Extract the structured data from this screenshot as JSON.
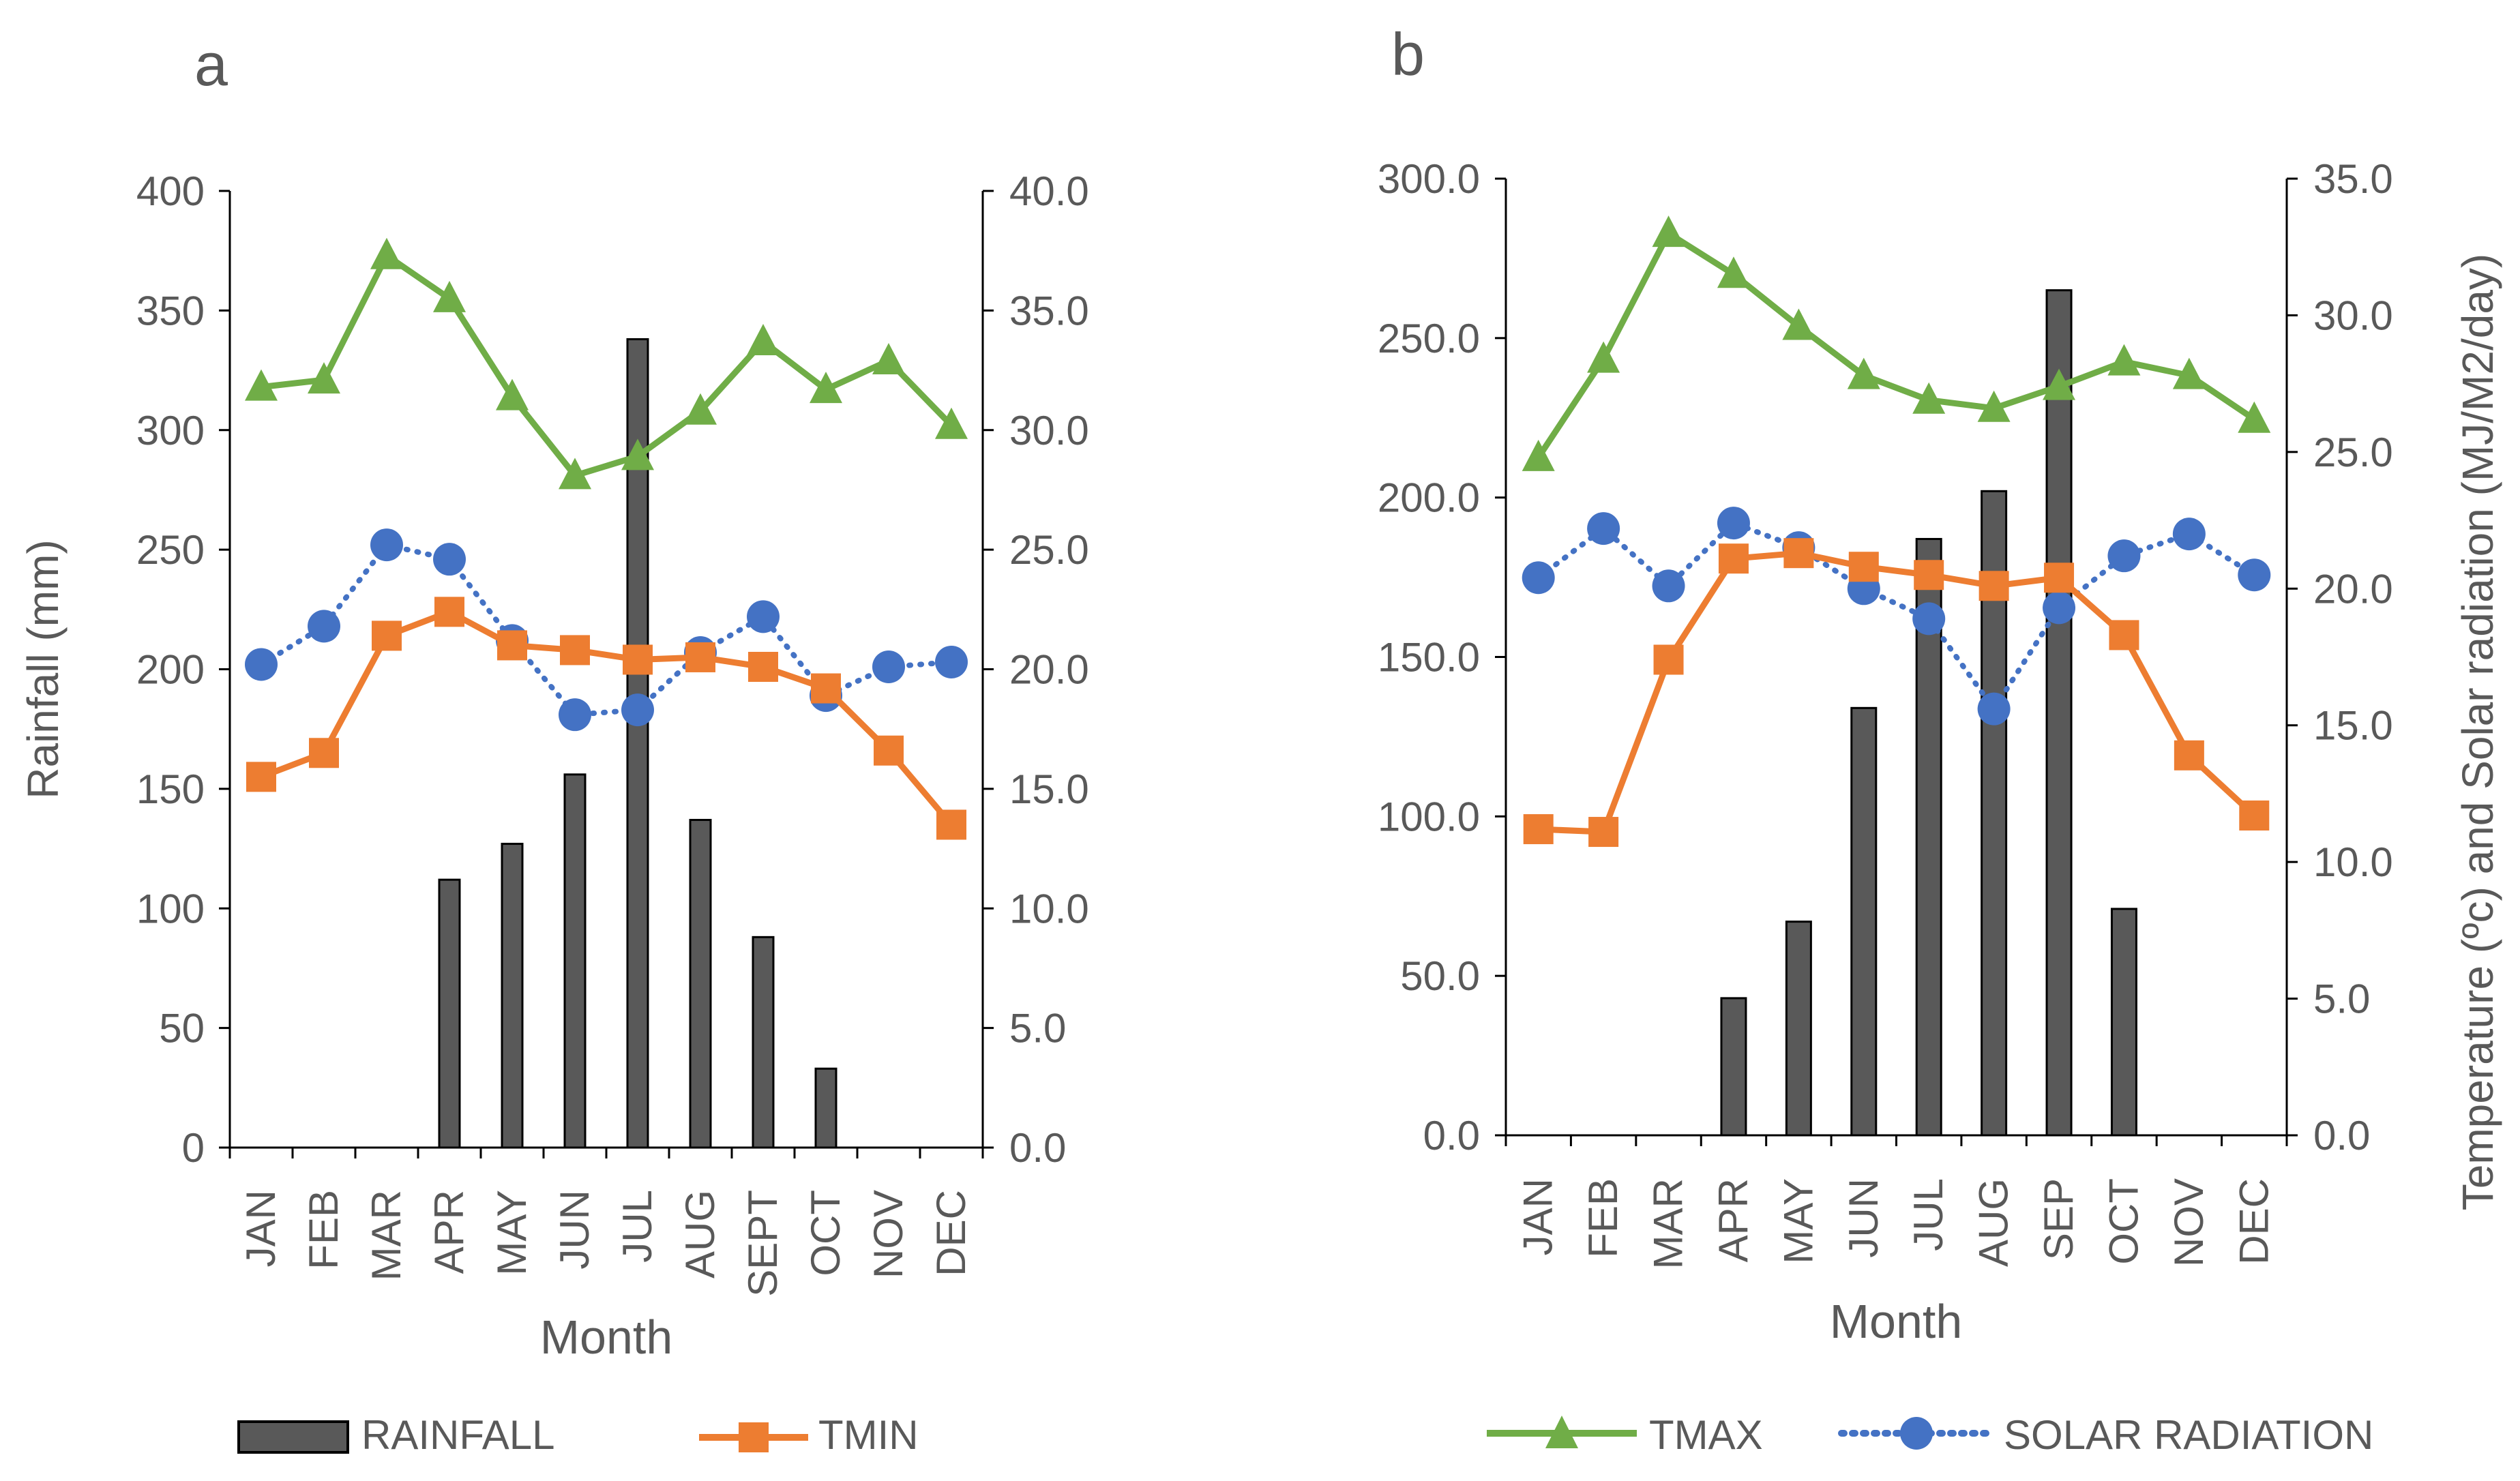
{
  "chart_data": [
    {
      "panel_label": "a",
      "type": "bar+line",
      "categories": [
        "JAN",
        "FEB",
        "MAR",
        "APR",
        "MAY",
        "JUN",
        "JUL",
        "AUG",
        "SEPT",
        "OCT",
        "NOV",
        "DEC"
      ],
      "xlabel": "Month",
      "ylabel": "Rainfall (mm)",
      "y2label": "",
      "ylim": [
        0,
        400
      ],
      "yticks": [
        "0",
        "50",
        "100",
        "150",
        "200",
        "250",
        "300",
        "350",
        "400"
      ],
      "y2lim": [
        0,
        40
      ],
      "y2ticks": [
        "0.0",
        "5.0",
        "10.0",
        "15.0",
        "20.0",
        "25.0",
        "30.0",
        "35.0",
        "40.0"
      ],
      "rainfall": [
        0,
        0,
        0,
        112,
        127,
        156,
        338,
        137,
        88,
        33,
        0,
        0
      ],
      "tmax": [
        31.8,
        32.1,
        37.3,
        35.5,
        31.4,
        28.1,
        28.9,
        30.8,
        33.7,
        31.7,
        32.9,
        30.2
      ],
      "tmin": [
        15.5,
        16.5,
        21.4,
        22.4,
        21.0,
        20.8,
        20.4,
        20.5,
        20.1,
        19.2,
        16.6,
        13.5
      ],
      "solar": [
        20.2,
        21.8,
        25.2,
        24.6,
        21.2,
        18.1,
        18.3,
        20.7,
        22.2,
        18.9,
        20.1,
        20.3
      ]
    },
    {
      "panel_label": "b",
      "type": "bar+line",
      "categories": [
        "JAN",
        "FEB",
        "MAR",
        "APR",
        "MAY",
        "JUN",
        "JUL",
        "AUG",
        "SEP",
        "OCT",
        "NOV",
        "DEC"
      ],
      "xlabel": "Month",
      "ylabel": "",
      "y2label": "Temperature (ºc) and Solar radiation (MJ/M2/day)",
      "ylim": [
        0,
        300
      ],
      "yticks": [
        "0.0",
        "50.0",
        "100.0",
        "150.0",
        "200.0",
        "250.0",
        "300.0"
      ],
      "y2lim": [
        0,
        35
      ],
      "y2ticks": [
        "0.0",
        "5.0",
        "10.0",
        "15.0",
        "20.0",
        "25.0",
        "30.0",
        "35.0"
      ],
      "rainfall": [
        0,
        0,
        0,
        43,
        67,
        134,
        187,
        202,
        265,
        71,
        0,
        0
      ],
      "tmax": [
        24.8,
        28.4,
        33.0,
        31.5,
        29.6,
        27.8,
        26.9,
        26.6,
        27.4,
        28.3,
        27.8,
        26.2
      ],
      "tmin": [
        11.2,
        11.1,
        17.4,
        21.1,
        21.3,
        20.8,
        20.5,
        20.1,
        20.4,
        18.3,
        13.9,
        11.7
      ],
      "solar": [
        20.4,
        22.2,
        20.1,
        22.4,
        21.5,
        20.0,
        18.9,
        15.6,
        19.3,
        21.2,
        22.0,
        20.5
      ]
    }
  ],
  "legend": {
    "rainfall": "RAINFALL",
    "tmin": "TMIN",
    "tmax": "TMAX",
    "solar": "SOLAR RADIATION"
  },
  "colors": {
    "rainfall": "#595959",
    "tmin": "#ED7D31",
    "tmax": "#70AD47",
    "solar": "#4472C4",
    "axis": "#000000",
    "text": "#595959"
  }
}
